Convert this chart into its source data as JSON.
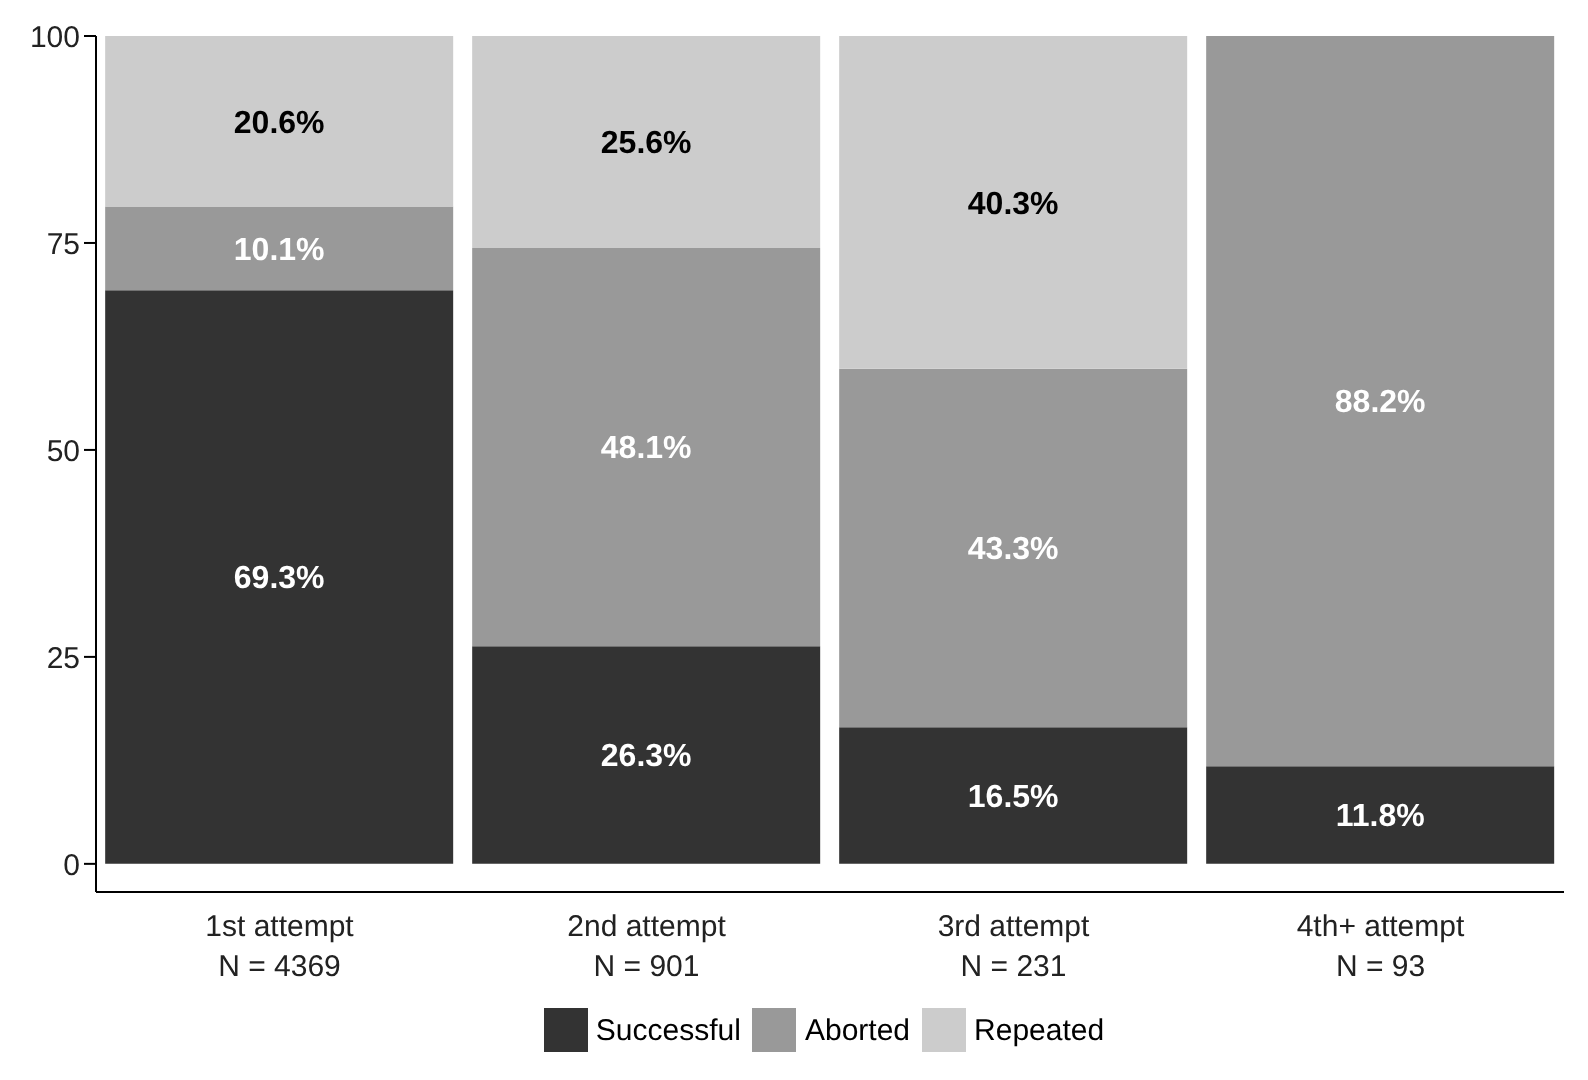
{
  "chart_data": {
    "type": "bar",
    "stacked": true,
    "categories": [
      "1st attempt\nN = 4369",
      "2nd attempt\nN = 901",
      "3rd attempt\nN = 231",
      "4th+ attempt\nN = 93"
    ],
    "series": [
      {
        "name": "Successful",
        "color": "#333333",
        "values": [
          69.3,
          26.3,
          16.5,
          11.8
        ],
        "value_labels": [
          "69.3%",
          "26.3%",
          "16.5%",
          "11.8%"
        ]
      },
      {
        "name": "Aborted",
        "color": "#999999",
        "values": [
          10.1,
          48.1,
          43.3,
          88.2
        ],
        "value_labels": [
          "10.1%",
          "48.1%",
          "43.3%",
          "88.2%"
        ]
      },
      {
        "name": "Repeated",
        "color": "#cccccc",
        "values": [
          20.6,
          25.6,
          40.3,
          null
        ],
        "value_labels": [
          "20.6%",
          "25.6%",
          "40.3%",
          null
        ]
      }
    ],
    "ylim": [
      -3.4,
      100
    ],
    "yticks": [
      0,
      25,
      50,
      75,
      100
    ],
    "grid": false,
    "legend": "bottom"
  }
}
